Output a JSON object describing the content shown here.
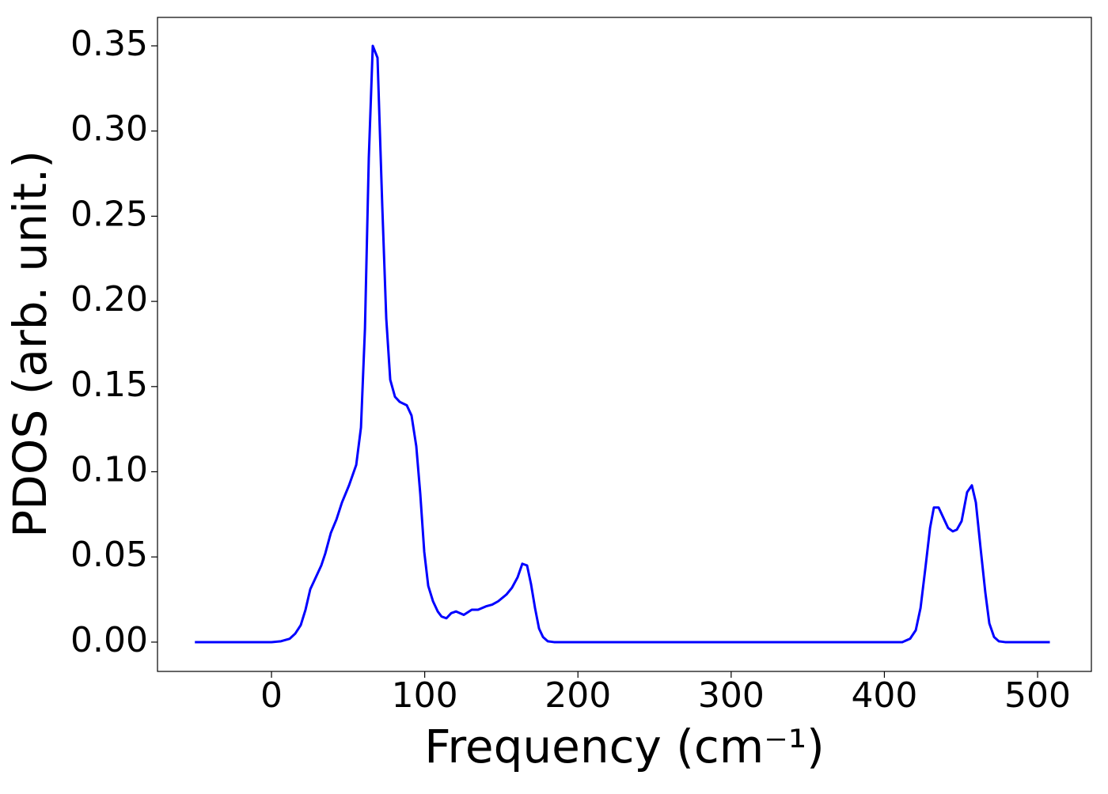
{
  "chart_data": {
    "type": "line",
    "x_label": "Frequency (cm⁻¹)",
    "y_label": "PDOS (arb. unit.)",
    "series": [
      {
        "color": "#0000ff",
        "x": [
          -50,
          0,
          6.2,
          11.9,
          15.5,
          19.1,
          22.2,
          25.3,
          28.4,
          32.5,
          35.1,
          38.7,
          42.4,
          46,
          50.6,
          55.3,
          58.4,
          61,
          63.5,
          66.1,
          69.2,
          72.3,
          74.9,
          77.5,
          80.6,
          83.7,
          88.3,
          91.4,
          94.5,
          97.1,
          99.7,
          102.3,
          105.4,
          108.5,
          111,
          114.2,
          117.3,
          120.4,
          125.5,
          130.7,
          134.8,
          140,
          144,
          148,
          153.4,
          157,
          160.6,
          163.7,
          166.8,
          169.4,
          172,
          174.6,
          177.2,
          180.3,
          184.4,
          411.7,
          416.8,
          420.5,
          423.6,
          426.7,
          429.8,
          432.3,
          435.4,
          438.5,
          441.6,
          444.7,
          447.3,
          450.4,
          454,
          457.1,
          459.7,
          462.8,
          465.9,
          468.5,
          471.6,
          474.7,
          478.8,
          508
        ],
        "values": [
          0,
          0,
          0.0005,
          0.002,
          0.005,
          0.01,
          0.019,
          0.031,
          0.037,
          0.045,
          0.052,
          0.064,
          0.072,
          0.082,
          0.092,
          0.104,
          0.126,
          0.184,
          0.284,
          0.35,
          0.343,
          0.256,
          0.19,
          0.154,
          0.144,
          0.141,
          0.139,
          0.133,
          0.115,
          0.087,
          0.053,
          0.033,
          0.024,
          0.018,
          0.015,
          0.014,
          0.017,
          0.018,
          0.016,
          0.019,
          0.019,
          0.021,
          0.022,
          0.024,
          0.028,
          0.032,
          0.038,
          0.046,
          0.045,
          0.034,
          0.02,
          0.008,
          0.003,
          0.0005,
          0,
          0,
          0.002,
          0.007,
          0.02,
          0.043,
          0.067,
          0.079,
          0.079,
          0.073,
          0.067,
          0.065,
          0.066,
          0.071,
          0.088,
          0.092,
          0.082,
          0.055,
          0.029,
          0.011,
          0.003,
          0.0005,
          0,
          0
        ]
      }
    ],
    "xlim": [
      -74.4,
      535.1
    ],
    "ylim": [
      -0.0172,
      0.3667
    ],
    "xticks": [
      0,
      100,
      200,
      300,
      400,
      500
    ],
    "yticks": [
      {
        "value": 0,
        "label": "0.00"
      },
      0.05,
      {
        "value": 0.1,
        "label": "0.10"
      },
      0.15,
      {
        "value": 0.2,
        "label": "0.20"
      },
      0.25,
      {
        "value": 0.3,
        "label": "0.30"
      },
      0.35
    ]
  }
}
